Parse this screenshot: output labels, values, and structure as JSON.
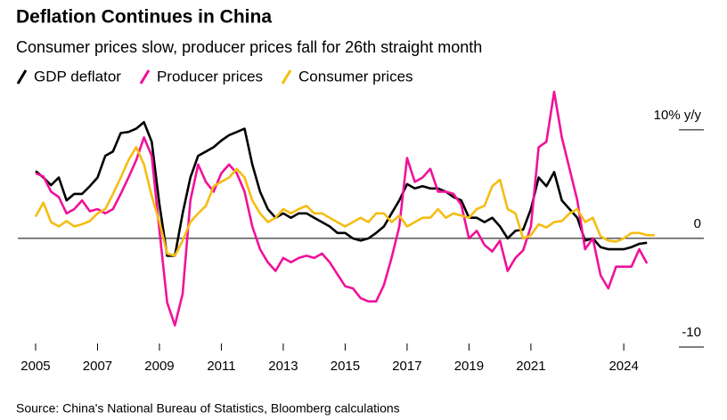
{
  "chart_data": {
    "type": "line",
    "title": "Deflation Continues in China",
    "subtitle": "Consumer prices slow, producer prices fall for 26th straight month",
    "source": "Source: China's National Bureau of Statistics, Bloomberg calculations",
    "x": [
      2005.0,
      2005.25,
      2005.5,
      2005.75,
      2006.0,
      2006.25,
      2006.5,
      2006.75,
      2007.0,
      2007.25,
      2007.5,
      2007.75,
      2008.0,
      2008.25,
      2008.5,
      2008.75,
      2009.0,
      2009.25,
      2009.5,
      2009.75,
      2010.0,
      2010.25,
      2010.5,
      2010.75,
      2011.0,
      2011.25,
      2011.5,
      2011.75,
      2012.0,
      2012.25,
      2012.5,
      2012.75,
      2013.0,
      2013.25,
      2013.5,
      2013.75,
      2014.0,
      2014.25,
      2014.5,
      2014.75,
      2015.0,
      2015.25,
      2015.5,
      2015.75,
      2016.0,
      2016.25,
      2016.5,
      2016.75,
      2017.0,
      2017.25,
      2017.5,
      2017.75,
      2018.0,
      2018.25,
      2018.5,
      2018.75,
      2019.0,
      2019.25,
      2019.5,
      2019.75,
      2020.0,
      2020.25,
      2020.5,
      2020.75,
      2021.0,
      2021.25,
      2021.5,
      2021.75,
      2022.0,
      2022.25,
      2022.5,
      2022.75,
      2023.0,
      2023.25,
      2023.5,
      2023.75,
      2024.0,
      2024.25,
      2024.5,
      2024.75,
      2025.0
    ],
    "series": [
      {
        "name": "GDP deflator",
        "color": "#000000",
        "values": [
          6.2,
          5.6,
          4.9,
          5.6,
          3.5,
          4.1,
          4.1,
          4.8,
          5.6,
          7.6,
          8.0,
          9.7,
          9.8,
          10.1,
          10.7,
          8.9,
          3.1,
          -1.6,
          -1.6,
          2.3,
          5.6,
          7.6,
          8.0,
          8.4,
          9.0,
          9.5,
          9.8,
          10.1,
          6.8,
          4.3,
          2.7,
          1.9,
          2.3,
          1.9,
          2.3,
          2.3,
          1.9,
          1.5,
          1.1,
          0.5,
          0.5,
          0.0,
          -0.2,
          0.0,
          0.5,
          1.1,
          2.3,
          3.5,
          5.0,
          4.6,
          4.8,
          4.6,
          4.6,
          4.3,
          3.8,
          3.5,
          1.9,
          1.9,
          1.5,
          1.9,
          1.1,
          0.0,
          0.7,
          0.8,
          2.7,
          5.6,
          4.8,
          6.1,
          3.5,
          2.7,
          1.9,
          -0.2,
          0.0,
          -0.8,
          -1.0,
          -1.0,
          -1.0,
          -0.8,
          -0.5,
          -0.4,
          null
        ]
      },
      {
        "name": "Producer prices",
        "color": "#f0119a",
        "values": [
          6.0,
          5.7,
          4.3,
          3.8,
          2.3,
          2.7,
          3.5,
          2.5,
          2.7,
          2.3,
          2.7,
          4.1,
          5.6,
          7.2,
          9.3,
          7.6,
          0.7,
          -5.9,
          -8.0,
          -5.1,
          3.5,
          6.8,
          5.2,
          4.3,
          6.0,
          6.8,
          6.0,
          4.3,
          1.1,
          -1.0,
          -2.2,
          -3.0,
          -1.8,
          -2.2,
          -1.8,
          -1.6,
          -1.8,
          -1.4,
          -2.2,
          -3.3,
          -4.4,
          -4.6,
          -5.5,
          -5.8,
          -5.8,
          -4.3,
          -1.8,
          1.1,
          7.4,
          5.2,
          5.6,
          6.4,
          4.3,
          4.3,
          4.1,
          3.1,
          0.0,
          0.7,
          -0.6,
          -1.2,
          -0.2,
          -3.0,
          -1.8,
          -1.1,
          1.1,
          8.4,
          8.9,
          13.5,
          9.3,
          6.4,
          3.5,
          -1.0,
          0.0,
          -3.4,
          -4.6,
          -2.6,
          -2.6,
          -2.6,
          -1.0,
          -2.3,
          null
        ]
      },
      {
        "name": "Consumer prices",
        "color": "#f5bd12",
        "values": [
          2.0,
          3.3,
          1.5,
          1.1,
          1.6,
          1.1,
          1.3,
          1.6,
          2.3,
          2.7,
          4.1,
          5.6,
          7.2,
          8.4,
          6.8,
          3.9,
          1.5,
          -1.4,
          -1.6,
          -0.2,
          1.5,
          2.3,
          3.0,
          4.8,
          5.2,
          5.6,
          6.4,
          5.6,
          3.5,
          2.3,
          1.5,
          1.9,
          2.7,
          2.3,
          2.7,
          3.0,
          2.3,
          2.3,
          1.9,
          1.5,
          1.1,
          1.5,
          1.9,
          1.5,
          2.3,
          2.3,
          1.5,
          2.1,
          1.1,
          1.5,
          1.9,
          1.9,
          2.7,
          1.9,
          2.3,
          2.1,
          1.9,
          2.7,
          3.0,
          4.8,
          5.4,
          2.7,
          2.3,
          0.0,
          0.3,
          1.3,
          1.0,
          1.5,
          1.6,
          2.3,
          2.7,
          1.5,
          1.9,
          0.2,
          -0.2,
          -0.3,
          0.0,
          0.5,
          0.5,
          0.3,
          0.3
        ]
      }
    ],
    "xlim": [
      2004.5,
      2026.5
    ],
    "xticks": [
      2005,
      2007,
      2009,
      2011,
      2013,
      2015,
      2017,
      2019,
      2021,
      2024
    ],
    "ylim": [
      -10,
      14
    ],
    "yticks": [
      {
        "value": 10,
        "label": "10% y/y"
      },
      0,
      -10
    ]
  }
}
